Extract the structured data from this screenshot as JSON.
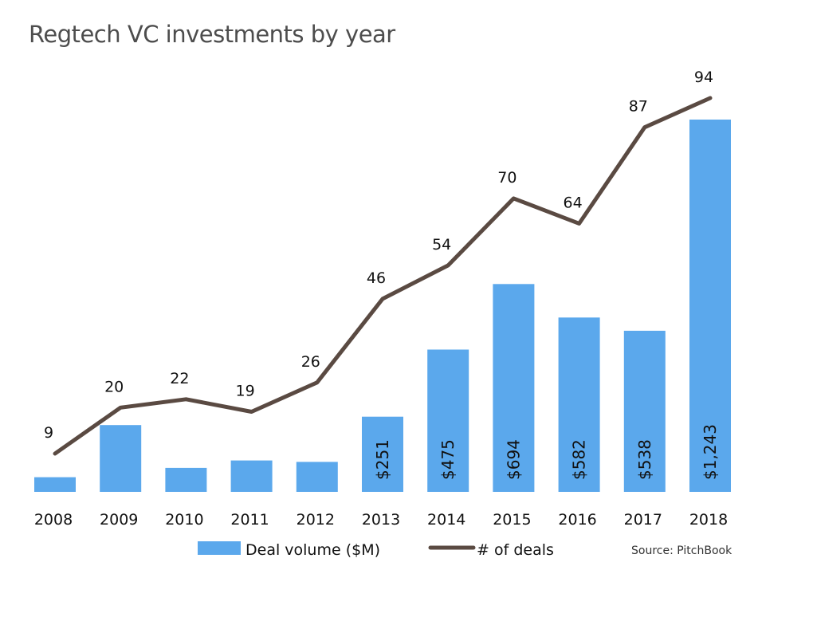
{
  "chart_data": {
    "type": "bar",
    "title": "Regtech VC investments by year",
    "categories": [
      "2008",
      "2009",
      "2010",
      "2011",
      "2012",
      "2013",
      "2014",
      "2015",
      "2016",
      "2017",
      "2018"
    ],
    "series": [
      {
        "name": "Deal volume ($M)",
        "kind": "bar",
        "color": "#5ba8ec",
        "values": [
          49,
          223,
          80,
          105,
          100,
          251,
          475,
          694,
          582,
          538,
          1243
        ],
        "labels": [
          "",
          "",
          "",
          "",
          "",
          "$251",
          "$475",
          "$694",
          "$582",
          "$538",
          "$1,243"
        ]
      },
      {
        "name": "# of deals",
        "kind": "line",
        "color": "#5a4a42",
        "values": [
          9,
          20,
          22,
          19,
          26,
          46,
          54,
          70,
          64,
          87,
          94
        ],
        "labels": [
          "9",
          "20",
          "22",
          "19",
          "26",
          "46",
          "54",
          "70",
          "64",
          "87",
          "94"
        ]
      }
    ],
    "ylim_bar": [
      0,
      1243
    ],
    "ylim_line": [
      9,
      94
    ],
    "xlabel": "",
    "ylabel": "",
    "legend_position": "bottom",
    "source": "Source: PitchBook"
  }
}
